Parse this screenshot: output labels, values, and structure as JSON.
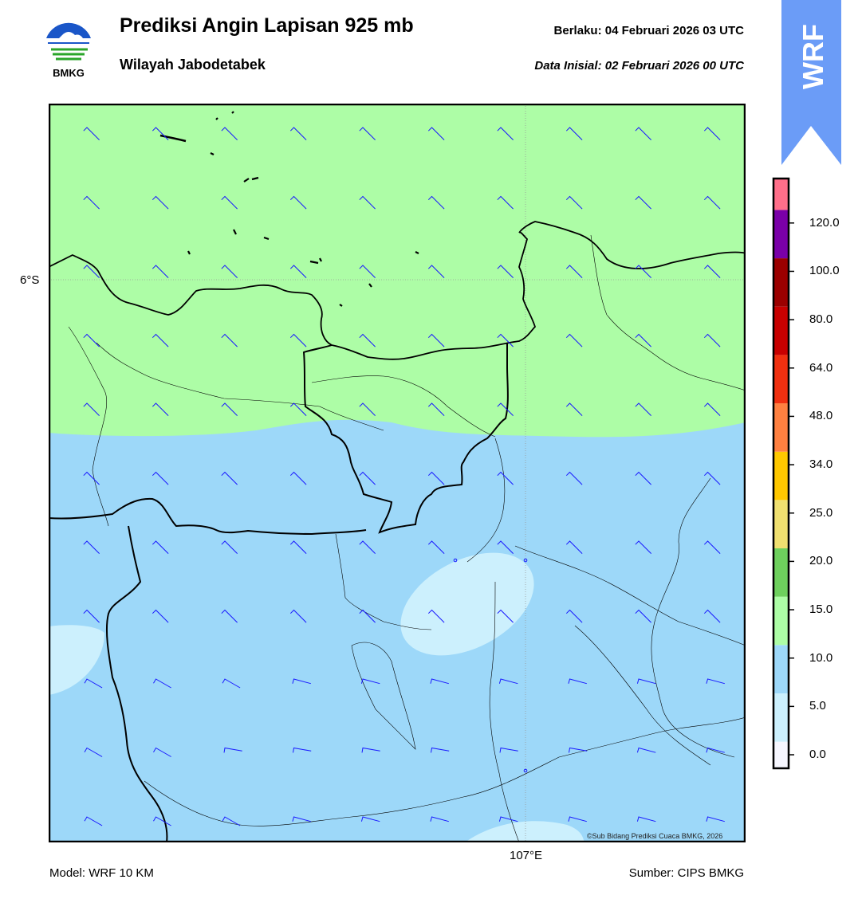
{
  "header": {
    "title": "Prediksi Angin Lapisan 925 mb",
    "subtitle": "Wilayah Jabodetabek",
    "valid_time": "Berlaku:  04 Februari 2026 03 UTC",
    "initial_time": "Data Inisial:  02 Februari 2026 00 UTC"
  },
  "logo": {
    "text": "BMKG",
    "icon": "bmkg-logo"
  },
  "badge": {
    "text": "WRF",
    "color": "#6b9cf7"
  },
  "map": {
    "lat_label": "6°S",
    "lon_label": "107°E",
    "copyright": "©Sub Bidang Prediksi Cuaca BMKG, 2026",
    "colors": {
      "band_10_15": "#adfda6",
      "band_5_10": "#9dd8f9",
      "band_0_5": "#ccf0fd",
      "barb": "#1a1aff",
      "coast": "#000000"
    }
  },
  "colorbar": {
    "ticks": [
      "120.0",
      "100.0",
      "80.0",
      "64.0",
      "48.0",
      "34.0",
      "25.0",
      "20.0",
      "15.0",
      "10.0",
      "5.0",
      "0.0"
    ],
    "colors": [
      "#f7f7ff",
      "#ccf0fd",
      "#9dd8f9",
      "#adfda6",
      "#6ed05d",
      "#f0e070",
      "#ffc800",
      "#ff8040",
      "#f03010",
      "#c80000",
      "#9b0000",
      "#7a00a8",
      "#ff6f8a"
    ]
  },
  "footer": {
    "model": "Model: WRF 10 KM",
    "source": "Sumber: CIPS BMKG"
  }
}
